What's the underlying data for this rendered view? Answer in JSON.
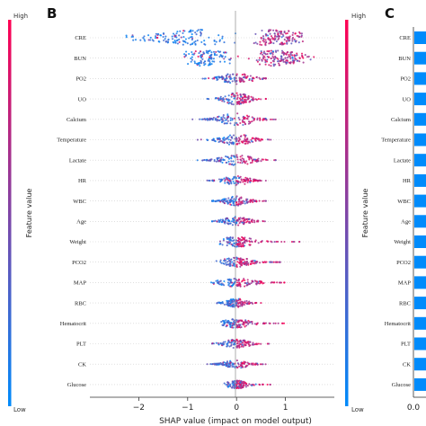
{
  "panels": [
    {
      "key": "B",
      "label": "B"
    },
    {
      "key": "C",
      "label": "C"
    }
  ],
  "colorbar": {
    "high_label": "High",
    "low_label": "Low",
    "title": "Feature value",
    "high_color": "#ff0052",
    "low_color": "#008bfb"
  },
  "chart_data": [
    {
      "type": "scatter",
      "subtype": "beeswarm",
      "xlabel": "SHAP value (impact on model output)",
      "ylabel": "",
      "xlim": [
        -3,
        2
      ],
      "xticks": [
        "−2",
        "−1",
        "0",
        "1"
      ],
      "xtick_values": [
        -2,
        -1,
        0,
        1
      ],
      "features": [
        {
          "name": "CRE",
          "min": -2.7,
          "max": 1.6,
          "width": 1.0,
          "profile": "bimodal"
        },
        {
          "name": "BUN",
          "min": -1.3,
          "max": 1.7,
          "width": 0.95,
          "profile": "bimodal"
        },
        {
          "name": "PO2",
          "min": -0.8,
          "max": 0.6,
          "width": 0.7,
          "profile": "normal"
        },
        {
          "name": "UO",
          "min": -0.6,
          "max": 0.6,
          "width": 0.75,
          "profile": "normal"
        },
        {
          "name": "Calcium",
          "min": -0.9,
          "max": 0.8,
          "width": 0.8,
          "profile": "normal"
        },
        {
          "name": "Temperature",
          "min": -0.8,
          "max": 0.7,
          "width": 0.7,
          "profile": "normal"
        },
        {
          "name": "Lactate",
          "min": -0.8,
          "max": 0.8,
          "width": 0.65,
          "profile": "normal"
        },
        {
          "name": "HR",
          "min": -0.6,
          "max": 0.6,
          "width": 0.6,
          "profile": "normal"
        },
        {
          "name": "WBC",
          "min": -0.5,
          "max": 0.6,
          "width": 0.6,
          "profile": "normal"
        },
        {
          "name": "Age",
          "min": -0.5,
          "max": 0.7,
          "width": 0.6,
          "profile": "normal"
        },
        {
          "name": "Weight",
          "min": -0.4,
          "max": 1.3,
          "width": 0.65,
          "profile": "skew"
        },
        {
          "name": "PCO2",
          "min": -0.5,
          "max": 0.9,
          "width": 0.6,
          "profile": "skew"
        },
        {
          "name": "MAP",
          "min": -0.7,
          "max": 1.1,
          "width": 0.55,
          "profile": "skew"
        },
        {
          "name": "RBC",
          "min": -0.4,
          "max": 0.5,
          "width": 0.55,
          "profile": "normal"
        },
        {
          "name": "Hematocrit",
          "min": -0.4,
          "max": 1.0,
          "width": 0.55,
          "profile": "skew"
        },
        {
          "name": "PLT",
          "min": -0.5,
          "max": 0.7,
          "width": 0.55,
          "profile": "normal"
        },
        {
          "name": "CK",
          "min": -0.6,
          "max": 0.6,
          "width": 0.5,
          "profile": "normal"
        },
        {
          "name": "Glucose",
          "min": -0.3,
          "max": 0.7,
          "width": 0.5,
          "profile": "skew"
        }
      ]
    },
    {
      "type": "bar",
      "orientation": "horizontal",
      "categories": [
        "CRE",
        "BUN",
        "PO2",
        "UO",
        "Calcium",
        "Temperature",
        "Lactate",
        "HR",
        "WBC",
        "Age",
        "Weight",
        "PCO2",
        "MAP",
        "RBC",
        "Hematocrit",
        "PLT",
        "CK",
        "Glucose"
      ],
      "xticks": [
        "0.0"
      ],
      "xlabel": "",
      "ylabel": "",
      "color": "#008bfb"
    }
  ]
}
